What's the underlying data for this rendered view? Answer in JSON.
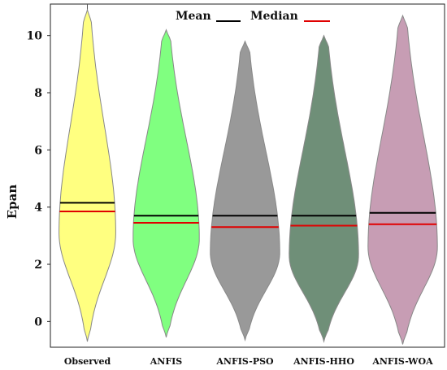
{
  "chart_data": {
    "type": "violin",
    "ylabel": "Epan",
    "ylim": [
      -0.9,
      11.1
    ],
    "yticks": [
      "0",
      "2",
      "4",
      "6",
      "8",
      "10"
    ],
    "legend": {
      "placement": "top-center",
      "mean_label": "Mean",
      "median_label": "Median",
      "mean_color": "#000000",
      "median_color": "#e00000"
    },
    "categories": [
      "Observed",
      "ANFIS",
      "ANFIS-PSO",
      "ANFIS-HHO",
      "ANFIS-WOA"
    ],
    "series": [
      {
        "category": "Observed",
        "color": "#ffff80",
        "min": -0.7,
        "max": 10.9,
        "mean": 4.15,
        "median": 3.85,
        "mode": 3.1,
        "peak_half_width": 0.36
      },
      {
        "category": "ANFIS",
        "color": "#80ff80",
        "min": -0.55,
        "max": 10.2,
        "mean": 3.7,
        "median": 3.45,
        "mode": 2.9,
        "peak_half_width": 0.42
      },
      {
        "category": "ANFIS-PSO",
        "color": "#999999",
        "min": -0.65,
        "max": 9.8,
        "mean": 3.7,
        "median": 3.3,
        "mode": 2.4,
        "peak_half_width": 0.44
      },
      {
        "category": "ANFIS-HHO",
        "color": "#6f8f78",
        "min": -0.7,
        "max": 10.0,
        "mean": 3.7,
        "median": 3.35,
        "mode": 2.3,
        "peak_half_width": 0.44
      },
      {
        "category": "ANFIS-WOA",
        "color": "#c79db4",
        "min": -0.8,
        "max": 10.7,
        "mean": 3.8,
        "median": 3.4,
        "mode": 2.6,
        "peak_half_width": 0.44
      }
    ],
    "grid": false
  }
}
